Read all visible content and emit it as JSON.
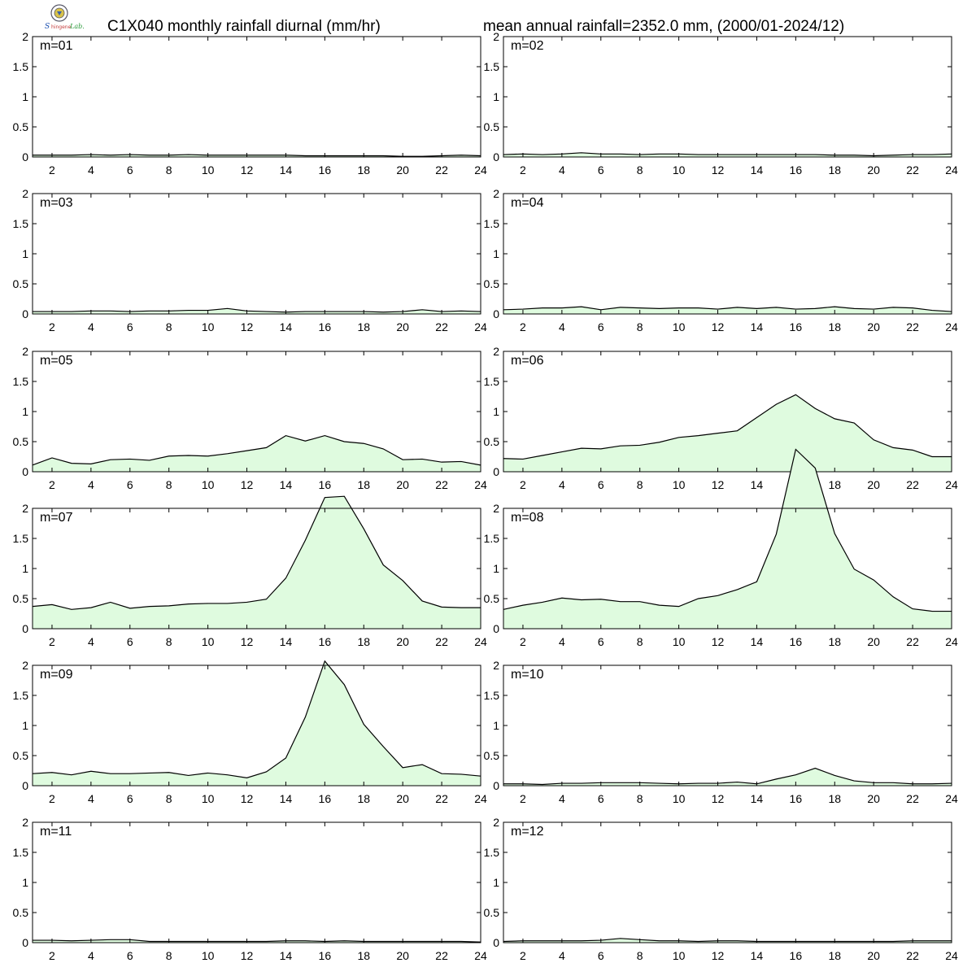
{
  "header": {
    "title_left": "C1X040 monthly rainfall diurnal (mm/hr)",
    "title_right": "mean annual rainfall=2352.0 mm, (2000/01-2024/12)",
    "logo_icon": "lab-seal-logo-icon"
  },
  "colors": {
    "fill": "#dffbdf",
    "line": "#000000",
    "frame": "#000000"
  },
  "chart_data": {
    "type": "area",
    "x": [
      1,
      2,
      3,
      4,
      5,
      6,
      7,
      8,
      9,
      10,
      11,
      12,
      13,
      14,
      15,
      16,
      17,
      18,
      19,
      20,
      21,
      22,
      23,
      24
    ],
    "xlim": [
      1,
      24
    ],
    "ylim": [
      0,
      2
    ],
    "x_ticks": [
      2,
      4,
      6,
      8,
      10,
      12,
      14,
      16,
      18,
      20,
      22,
      24
    ],
    "y_ticks": [
      0,
      0.5,
      1,
      1.5,
      2
    ],
    "x_tick_labels": [
      "2",
      "4",
      "6",
      "8",
      "10",
      "12",
      "14",
      "16",
      "18",
      "20",
      "22",
      "24"
    ],
    "y_tick_labels": [
      "0",
      "0.5",
      "1",
      "1.5",
      "2"
    ],
    "grid": false,
    "panels": [
      {
        "label": "m=01",
        "values": [
          0.03,
          0.03,
          0.03,
          0.04,
          0.03,
          0.04,
          0.03,
          0.03,
          0.04,
          0.03,
          0.03,
          0.03,
          0.03,
          0.03,
          0.02,
          0.02,
          0.02,
          0.02,
          0.02,
          0.01,
          0.01,
          0.02,
          0.03,
          0.02
        ]
      },
      {
        "label": "m=02",
        "values": [
          0.04,
          0.05,
          0.04,
          0.05,
          0.07,
          0.05,
          0.05,
          0.04,
          0.05,
          0.05,
          0.04,
          0.04,
          0.04,
          0.04,
          0.04,
          0.04,
          0.04,
          0.03,
          0.03,
          0.02,
          0.03,
          0.04,
          0.04,
          0.05
        ]
      },
      {
        "label": "m=03",
        "values": [
          0.04,
          0.04,
          0.04,
          0.05,
          0.05,
          0.04,
          0.05,
          0.05,
          0.06,
          0.06,
          0.09,
          0.05,
          0.04,
          0.03,
          0.04,
          0.04,
          0.04,
          0.04,
          0.03,
          0.04,
          0.07,
          0.04,
          0.05,
          0.04
        ]
      },
      {
        "label": "m=04",
        "values": [
          0.07,
          0.08,
          0.1,
          0.1,
          0.12,
          0.07,
          0.11,
          0.1,
          0.09,
          0.1,
          0.1,
          0.08,
          0.11,
          0.09,
          0.11,
          0.08,
          0.09,
          0.12,
          0.09,
          0.08,
          0.11,
          0.1,
          0.06,
          0.04
        ]
      },
      {
        "label": "m=05",
        "values": [
          0.11,
          0.23,
          0.14,
          0.13,
          0.2,
          0.21,
          0.19,
          0.26,
          0.27,
          0.26,
          0.3,
          0.35,
          0.4,
          0.6,
          0.51,
          0.6,
          0.5,
          0.47,
          0.38,
          0.2,
          0.21,
          0.16,
          0.17,
          0.11
        ]
      },
      {
        "label": "m=06",
        "values": [
          0.22,
          0.21,
          0.27,
          0.33,
          0.39,
          0.38,
          0.43,
          0.44,
          0.49,
          0.57,
          0.6,
          0.64,
          0.68,
          0.9,
          1.12,
          1.28,
          1.05,
          0.88,
          0.81,
          0.53,
          0.4,
          0.36,
          0.25,
          0.25
        ]
      },
      {
        "label": "m=07",
        "values": [
          0.37,
          0.4,
          0.32,
          0.35,
          0.44,
          0.34,
          0.37,
          0.38,
          0.41,
          0.42,
          0.42,
          0.44,
          0.49,
          0.84,
          1.47,
          2.18,
          2.2,
          1.66,
          1.06,
          0.8,
          0.46,
          0.36,
          0.35,
          0.35
        ]
      },
      {
        "label": "m=08",
        "values": [
          0.32,
          0.39,
          0.44,
          0.51,
          0.48,
          0.49,
          0.45,
          0.45,
          0.39,
          0.37,
          0.5,
          0.55,
          0.65,
          0.78,
          1.57,
          2.98,
          2.67,
          1.58,
          0.99,
          0.81,
          0.53,
          0.33,
          0.29,
          0.29
        ]
      },
      {
        "label": "m=09",
        "values": [
          0.2,
          0.22,
          0.18,
          0.24,
          0.2,
          0.2,
          0.21,
          0.22,
          0.17,
          0.21,
          0.18,
          0.13,
          0.23,
          0.46,
          1.14,
          2.07,
          1.68,
          1.02,
          0.65,
          0.3,
          0.35,
          0.2,
          0.19,
          0.16
        ]
      },
      {
        "label": "m=10",
        "values": [
          0.03,
          0.03,
          0.02,
          0.04,
          0.04,
          0.05,
          0.05,
          0.05,
          0.04,
          0.03,
          0.04,
          0.04,
          0.06,
          0.03,
          0.11,
          0.18,
          0.29,
          0.17,
          0.08,
          0.05,
          0.05,
          0.03,
          0.03,
          0.04
        ]
      },
      {
        "label": "m=11",
        "values": [
          0.04,
          0.04,
          0.03,
          0.04,
          0.05,
          0.05,
          0.02,
          0.02,
          0.02,
          0.02,
          0.02,
          0.02,
          0.02,
          0.03,
          0.03,
          0.02,
          0.03,
          0.02,
          0.02,
          0.02,
          0.02,
          0.02,
          0.02,
          0.01
        ]
      },
      {
        "label": "m=12",
        "values": [
          0.02,
          0.03,
          0.03,
          0.03,
          0.03,
          0.04,
          0.07,
          0.05,
          0.03,
          0.03,
          0.02,
          0.03,
          0.03,
          0.02,
          0.02,
          0.02,
          0.02,
          0.02,
          0.02,
          0.02,
          0.02,
          0.03,
          0.03,
          0.03
        ]
      }
    ]
  }
}
